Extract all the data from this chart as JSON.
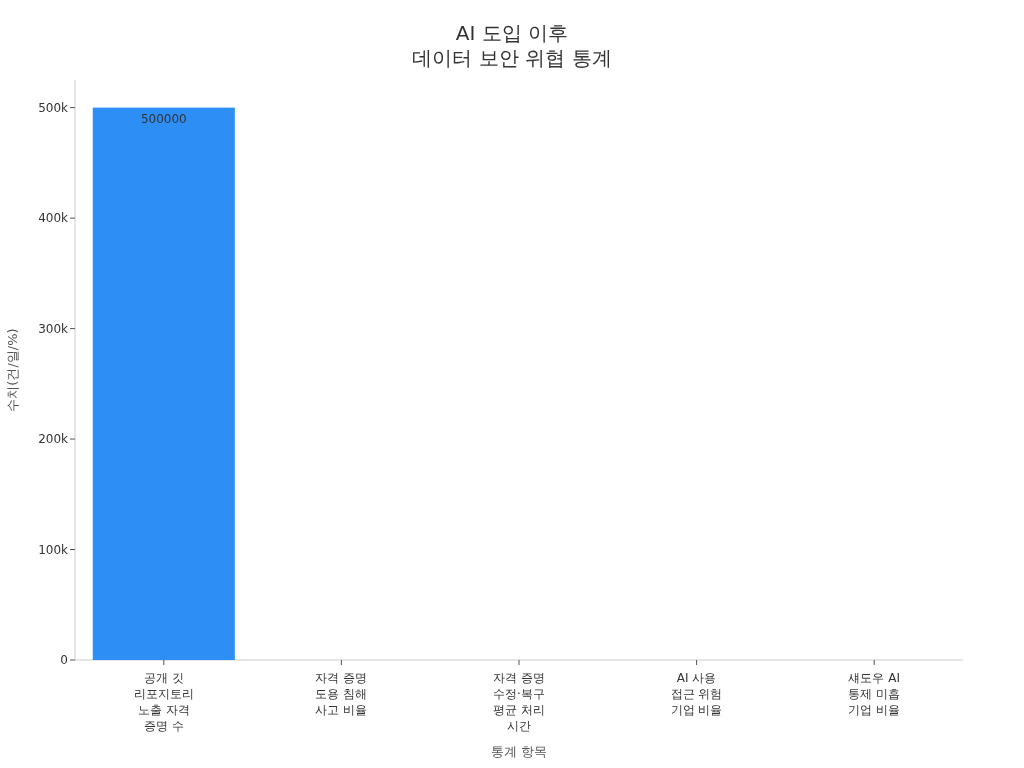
{
  "chart_data": {
    "type": "bar",
    "title": "AI 도입 이후\n데이터 보안 위협 통계",
    "xlabel": "통계 항목",
    "ylabel": "수치(건/일/%)",
    "categories": [
      "공개 깃\n리포지토리\n노출 자격\n증명 수",
      "자격 증명\n도용 침해\n사고 비율",
      "자격 증명\n수정·복구\n평균 처리\n시간",
      "AI 사용\n접근 위험\n기업 비율",
      "섀도우 AI\n통제 미흡\n기업 비율"
    ],
    "values": [
      500000,
      0,
      0,
      0,
      0
    ],
    "color": "#2d8ff5",
    "value_labels": [
      "500000",
      null,
      null,
      null,
      null
    ],
    "ylim": [
      0,
      525000
    ],
    "yticks": [
      {
        "value": 0,
        "label": "0"
      },
      {
        "value": 100000,
        "label": "100k"
      },
      {
        "value": 200000,
        "label": "200k"
      },
      {
        "value": 300000,
        "label": "300k"
      },
      {
        "value": 400000,
        "label": "400k"
      },
      {
        "value": 500000,
        "label": "500k"
      }
    ]
  }
}
